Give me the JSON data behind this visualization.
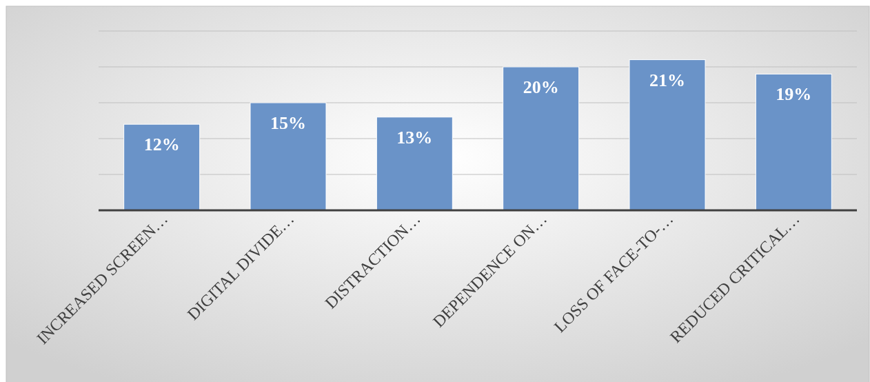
{
  "chart_data": {
    "type": "bar",
    "categories": [
      "INCREASED SCREEN…",
      "DIGITAL DIVIDE…",
      "DISTRACTION…",
      "DEPENDENCE ON…",
      "LOSS OF FACE-TO-…",
      "REDUCED CRITICAL…"
    ],
    "values": [
      12,
      15,
      13,
      20,
      21,
      19
    ],
    "value_labels": [
      "12%",
      "15%",
      "13%",
      "20%",
      "21%",
      "19%"
    ],
    "color": "#6a93c8",
    "ylim": [
      0,
      25
    ],
    "yticks": [
      {
        "value": 0,
        "label": null
      },
      {
        "value": 5,
        "label": null
      },
      {
        "value": 10,
        "label": null
      },
      {
        "value": 15,
        "label": null
      },
      {
        "value": 20,
        "label": null
      },
      {
        "value": 25,
        "label": null
      }
    ],
    "grid": "y",
    "tick_labels": "x"
  }
}
